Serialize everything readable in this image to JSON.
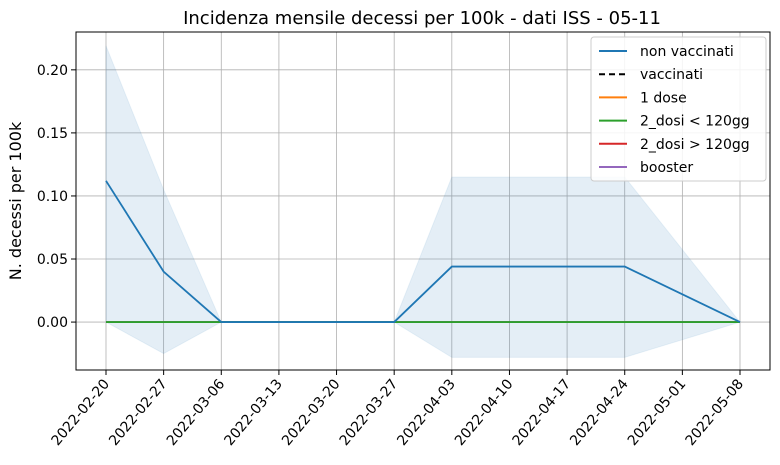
{
  "chart_data": {
    "type": "line",
    "title": "Incidenza mensile decessi per 100k - dati ISS - 05-11",
    "xlabel": "",
    "ylabel": "N. decessi per 100k",
    "x": [
      "2022-02-20",
      "2022-02-27",
      "2022-03-06",
      "2022-03-13",
      "2022-03-20",
      "2022-03-27",
      "2022-04-03",
      "2022-04-10",
      "2022-04-17",
      "2022-04-24",
      "2022-05-01",
      "2022-05-08"
    ],
    "y_ticks": [
      "0.00",
      "0.05",
      "0.10",
      "0.15",
      "0.20"
    ],
    "ylim": [
      -0.038,
      0.23
    ],
    "grid": true,
    "legend_position": "top-right",
    "series": [
      {
        "name": "non vaccinati",
        "color": "#1f77b4",
        "style": "solid",
        "points": [
          [
            "2022-02-20",
            0.112
          ],
          [
            "2022-02-27",
            0.04
          ],
          [
            "2022-03-06",
            0.0
          ],
          [
            "2022-03-13",
            0.0
          ],
          [
            "2022-03-20",
            0.0
          ],
          [
            "2022-03-27",
            0.0
          ],
          [
            "2022-04-03",
            0.044
          ],
          [
            "2022-04-24",
            0.044
          ],
          [
            "2022-05-08",
            0.0
          ]
        ],
        "band_upper": [
          [
            "2022-02-20",
            0.219
          ],
          [
            "2022-02-27",
            0.105
          ],
          [
            "2022-03-06",
            0.0
          ],
          [
            "2022-03-13",
            0.0
          ],
          [
            "2022-03-20",
            0.0
          ],
          [
            "2022-03-27",
            0.0
          ],
          [
            "2022-04-03",
            0.115
          ],
          [
            "2022-04-24",
            0.115
          ],
          [
            "2022-05-08",
            0.0
          ]
        ],
        "band_lower": [
          [
            "2022-02-20",
            0.0
          ],
          [
            "2022-02-27",
            -0.025
          ],
          [
            "2022-03-06",
            0.0
          ],
          [
            "2022-03-13",
            0.0
          ],
          [
            "2022-03-20",
            0.0
          ],
          [
            "2022-03-27",
            0.0
          ],
          [
            "2022-04-03",
            -0.028
          ],
          [
            "2022-04-24",
            -0.028
          ],
          [
            "2022-05-08",
            0.0
          ]
        ]
      },
      {
        "name": "vaccinati",
        "color": "#000000",
        "style": "dashed",
        "points": [
          [
            "2022-02-20",
            0
          ],
          [
            "2022-05-08",
            0
          ]
        ]
      },
      {
        "name": "1 dose",
        "color": "#ff7f0e",
        "style": "solid",
        "points": [
          [
            "2022-02-20",
            0
          ],
          [
            "2022-05-08",
            0
          ]
        ]
      },
      {
        "name": "2_dosi < 120gg",
        "color": "#2ca02c",
        "style": "solid",
        "points": [
          [
            "2022-02-20",
            0
          ],
          [
            "2022-05-08",
            0
          ]
        ]
      },
      {
        "name": "2_dosi > 120gg",
        "color": "#d62728",
        "style": "solid",
        "points": [
          [
            "2022-02-20",
            0
          ],
          [
            "2022-05-08",
            0
          ]
        ]
      },
      {
        "name": "booster",
        "color": "#9467bd",
        "style": "solid",
        "points": [
          [
            "2022-02-20",
            0
          ],
          [
            "2022-05-08",
            0
          ]
        ]
      }
    ]
  }
}
